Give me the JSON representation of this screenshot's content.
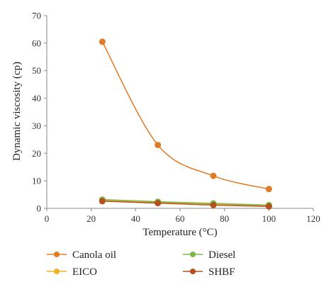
{
  "chart_data": {
    "type": "scatter",
    "xlabel": "Temperature (°C)",
    "ylabel": "Dynamic viscosity (cp)",
    "xlim": [
      0,
      120
    ],
    "ylim": [
      0,
      70
    ],
    "x_ticks": [
      "0",
      "20",
      "40",
      "60",
      "80",
      "100",
      "120"
    ],
    "y_ticks": [
      "0",
      "10",
      "20",
      "30",
      "40",
      "50",
      "60",
      "70"
    ],
    "grid": false,
    "legend_position": "bottom",
    "x": [
      25,
      50,
      75,
      100
    ],
    "series": [
      {
        "name": "Canola oil",
        "values": [
          60.5,
          23,
          11.8,
          7
        ],
        "color": "#E07B28",
        "smooth": true
      },
      {
        "name": "Diesel",
        "values": [
          3.2,
          2.4,
          1.8,
          1.2
        ],
        "color": "#7DB84A",
        "smooth": false
      },
      {
        "name": "EICO",
        "values": [
          3.0,
          2.2,
          1.6,
          1.0
        ],
        "color": "#F0B323",
        "smooth": false
      },
      {
        "name": "SHBF",
        "values": [
          2.6,
          1.9,
          1.2,
          0.7
        ],
        "color": "#B3501E",
        "smooth": false
      }
    ]
  }
}
